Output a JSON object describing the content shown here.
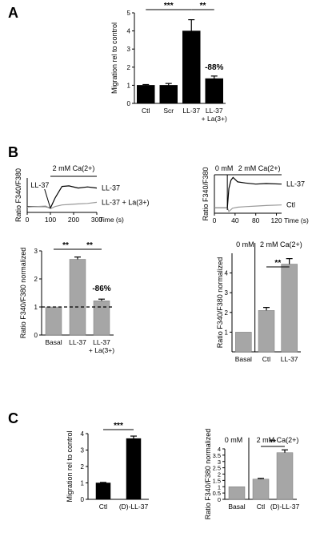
{
  "panels": {
    "a": "A",
    "b": "B",
    "c": "C"
  },
  "colors": {
    "black_bar": "#000000",
    "gray_bar": "#a6a6a6",
    "trace": "#000000",
    "trace_light": "#9a9a9a"
  },
  "chart_data": [
    {
      "panel": "A",
      "type": "bar",
      "ylabel": "Migration rel to control",
      "ylim": [
        0,
        5
      ],
      "yticks": [
        "0",
        "1",
        "2",
        "3",
        "4",
        "5"
      ],
      "categories": [
        "Ctl",
        "Scr",
        "LL-37",
        "LL-37 + La(3+)"
      ],
      "values": [
        1.0,
        1.0,
        4.0,
        1.37
      ],
      "errors": [
        0.04,
        0.1,
        0.62,
        0.14
      ],
      "bar_color": "#000000",
      "significance": [
        "***",
        "**"
      ],
      "annotation": "-88%"
    },
    {
      "panel": "B-left-trace",
      "type": "line",
      "ylabel": "Ratio F340/F380",
      "xlabel": "Time (s)",
      "xlim": [
        0,
        300
      ],
      "xticks": [
        "0",
        "100",
        "200",
        "300"
      ],
      "header": "2 mM Ca(2+)",
      "marker": "LL-37",
      "series": [
        {
          "name": "LL-37",
          "x": [
            0,
            40,
            80,
            100,
            120,
            150,
            180,
            220,
            260,
            300
          ],
          "y": [
            2.6,
            2.6,
            2.6,
            2.3,
            4.2,
            6.4,
            6.5,
            6.1,
            6.3,
            6.1
          ]
        },
        {
          "name": "LL-37 + La(3+)",
          "x": [
            0,
            40,
            80,
            100,
            120,
            150,
            180,
            220,
            260,
            300
          ],
          "y": [
            2.5,
            2.6,
            2.7,
            2.2,
            2.6,
            2.9,
            3.0,
            3.1,
            3.2,
            3.4
          ]
        }
      ]
    },
    {
      "panel": "B-right-trace",
      "type": "line",
      "ylabel": "Ratio F340/F380",
      "xlabel": "Time (s)",
      "xlim": [
        0,
        130
      ],
      "xticks": [
        "0",
        "40",
        "80",
        "120"
      ],
      "header_left": "0 mM",
      "header_right": "2 mM Ca(2+)",
      "series": [
        {
          "name": "LL-37",
          "x": [
            0,
            25,
            28,
            32,
            36,
            45,
            60,
            80,
            100,
            130
          ],
          "y": [
            2.5,
            2.5,
            6.0,
            7.5,
            8.0,
            7.2,
            7.0,
            6.8,
            6.9,
            6.8
          ]
        },
        {
          "name": "Ctl",
          "x": [
            0,
            25,
            28,
            35,
            45,
            60,
            80,
            100,
            130
          ],
          "y": [
            2.5,
            2.5,
            1.8,
            2.4,
            2.6,
            2.7,
            2.8,
            2.9,
            3.0
          ]
        }
      ]
    },
    {
      "panel": "B-left-bar",
      "type": "bar",
      "ylabel": "Ratio F340/F380 normalized",
      "ylim": [
        0,
        3
      ],
      "yticks": [
        "0",
        "1",
        "2",
        "3"
      ],
      "categories": [
        "Basal",
        "LL-37",
        "LL-37 + La(3+)"
      ],
      "values": [
        1.0,
        2.7,
        1.22
      ],
      "errors": [
        0.0,
        0.08,
        0.06
      ],
      "bar_color": "#a6a6a6",
      "baseline": 1.0,
      "significance": [
        "**",
        "**"
      ],
      "annotation": "-86%"
    },
    {
      "panel": "B-right-bar",
      "type": "bar",
      "ylabel": "Ratio F340/F380 normalized",
      "ylim": [
        0,
        5
      ],
      "yticks": [
        "1",
        "2",
        "3",
        "4"
      ],
      "categories": [
        "Basal",
        "Ctl",
        "LL-37"
      ],
      "values": [
        1.0,
        2.1,
        4.45
      ],
      "errors": [
        0.0,
        0.15,
        0.28
      ],
      "bar_color": "#a6a6a6",
      "header_left": "0 mM",
      "header_right": "2 mM Ca(2+)",
      "significance": [
        "**"
      ]
    },
    {
      "panel": "C-left",
      "type": "bar",
      "ylabel": "Migration rel to control",
      "ylim": [
        0,
        4
      ],
      "yticks": [
        "0",
        "1",
        "2",
        "3",
        "4"
      ],
      "categories": [
        "Ctl",
        "(D)-LL-37"
      ],
      "values": [
        1.0,
        3.7
      ],
      "errors": [
        0.03,
        0.15
      ],
      "bar_color": "#000000",
      "significance": [
        "***"
      ]
    },
    {
      "panel": "C-right",
      "type": "bar",
      "ylabel": "Ratio F340/F380 normalized",
      "ylim": [
        0,
        4
      ],
      "yticks": [
        "0",
        "0.5",
        "1",
        "1.5",
        "2",
        "2.5",
        "3",
        "3.5",
        "4"
      ],
      "categories": [
        "Basal",
        "Ctl",
        "(D)-LL-37"
      ],
      "values": [
        1.0,
        1.6,
        3.7
      ],
      "errors": [
        0.0,
        0.06,
        0.22
      ],
      "bar_color": "#a6a6a6",
      "header_left": "0 mM",
      "header_right": "2 mM Ca(2+)",
      "significance": [
        "**"
      ]
    }
  ]
}
